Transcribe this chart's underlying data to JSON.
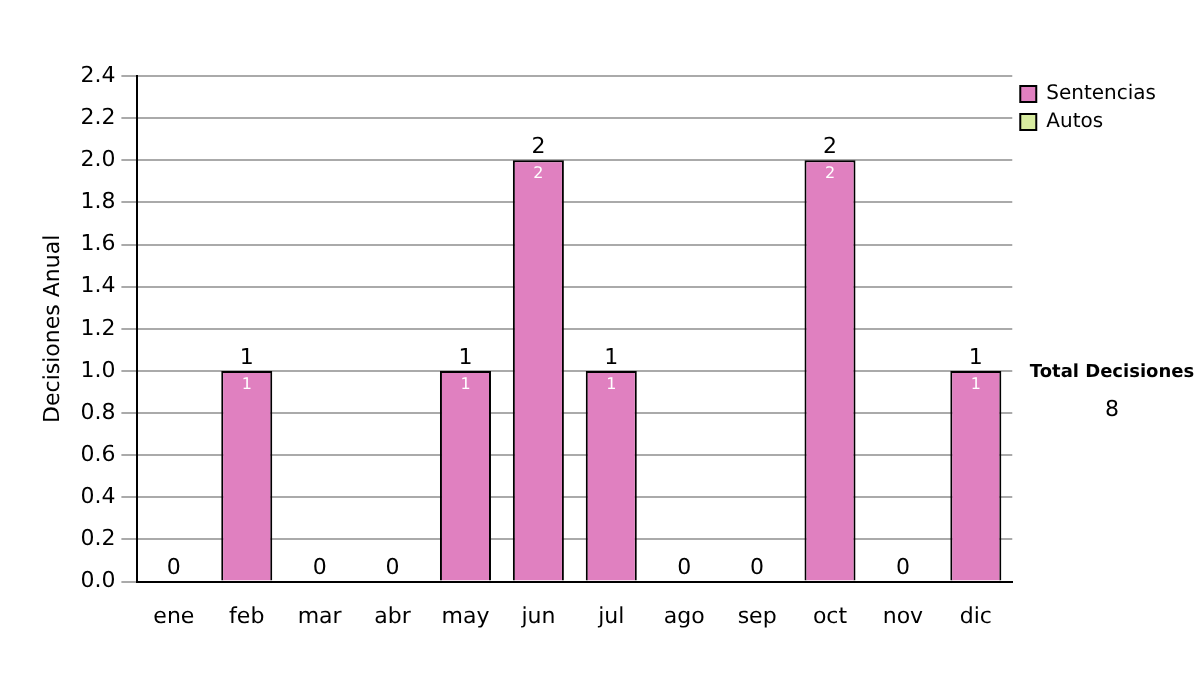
{
  "chart_data": {
    "type": "bar",
    "stacked": true,
    "ylabel": "Decisiones Anual",
    "categories": [
      "ene",
      "feb",
      "mar",
      "abr",
      "may",
      "jun",
      "jul",
      "ago",
      "sep",
      "oct",
      "nov",
      "dic"
    ],
    "series": [
      {
        "name": "Sentencias",
        "color": "#e080c0",
        "values": [
          0,
          1,
          0,
          0,
          1,
          2,
          1,
          0,
          0,
          2,
          0,
          1
        ],
        "value_labels": [
          null,
          "1",
          null,
          null,
          "1",
          "2",
          "1",
          null,
          null,
          "2",
          null,
          "1"
        ]
      },
      {
        "name": "Autos",
        "color": "#d8eca0",
        "values": [
          0,
          0,
          0,
          0,
          0,
          0,
          0,
          0,
          0,
          0,
          0,
          0
        ]
      }
    ],
    "totals": [
      "0",
      "1",
      "0",
      "0",
      "1",
      "2",
      "1",
      "0",
      "0",
      "2",
      "0",
      "1"
    ],
    "ylim": [
      0,
      2.4
    ],
    "yticks": [
      {
        "value": 0,
        "label": "0.0"
      },
      0.2,
      0.4,
      0.6,
      0.8,
      {
        "value": 1,
        "label": "1.0"
      },
      1.2,
      1.4,
      1.6,
      1.8,
      {
        "value": 2,
        "label": "2.0"
      },
      2.2,
      2.4
    ],
    "grid": "y",
    "legend": "right",
    "annotations": [
      "Total Decisiones",
      "8"
    ]
  }
}
